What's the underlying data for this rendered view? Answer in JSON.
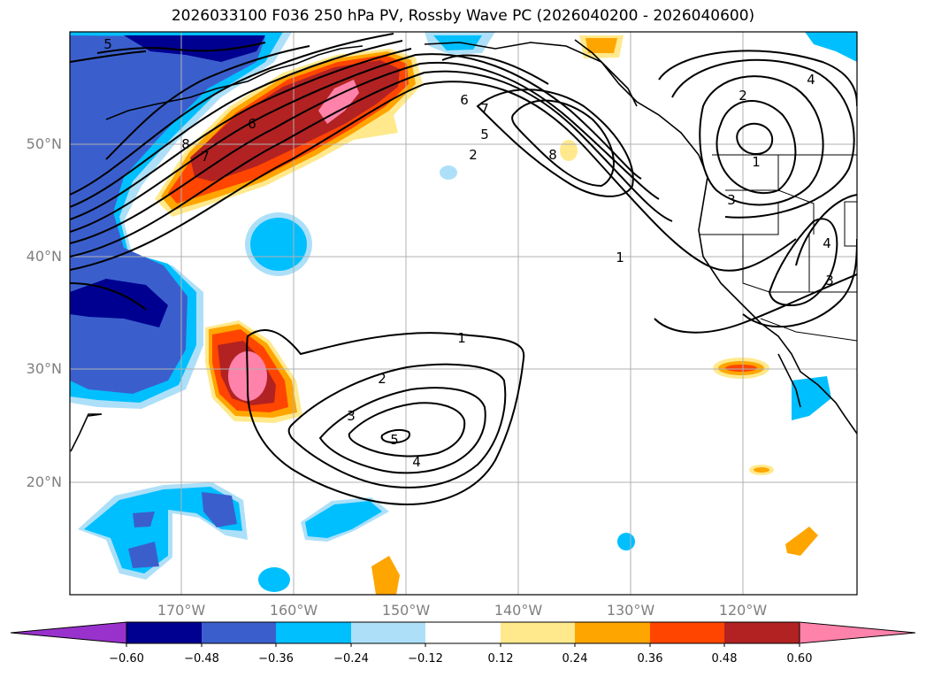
{
  "title": "2026033100 F036 250 hPa PV, Rossby Wave PC (2026040200 - 2026040600)",
  "lat_labels": [
    "50°N",
    "40°N",
    "30°N",
    "20°N"
  ],
  "lon_labels": [
    "170°W",
    "160°W",
    "150°W",
    "140°W",
    "130°W",
    "120°W"
  ],
  "colorbar": {
    "ticks": [
      "−0.60",
      "−0.48",
      "−0.36",
      "−0.24",
      "−0.12",
      "0.12",
      "0.24",
      "0.36",
      "0.48",
      "0.60"
    ],
    "colors": [
      "#9932cc",
      "#000090",
      "#3a5fcd",
      "#00bfff",
      "#ade0f8",
      "#ffffff",
      "#ffe98c",
      "#ffa500",
      "#ff4500",
      "#b22222",
      "#ff82ab"
    ]
  },
  "contour_labels": {
    "north": [
      "5",
      "8",
      "7",
      "6",
      "6",
      "7",
      "5",
      "2",
      "8",
      "4",
      "2",
      "1",
      "3",
      "4",
      "3",
      "1"
    ],
    "south": [
      "1",
      "2",
      "3",
      "5",
      "4"
    ]
  }
}
